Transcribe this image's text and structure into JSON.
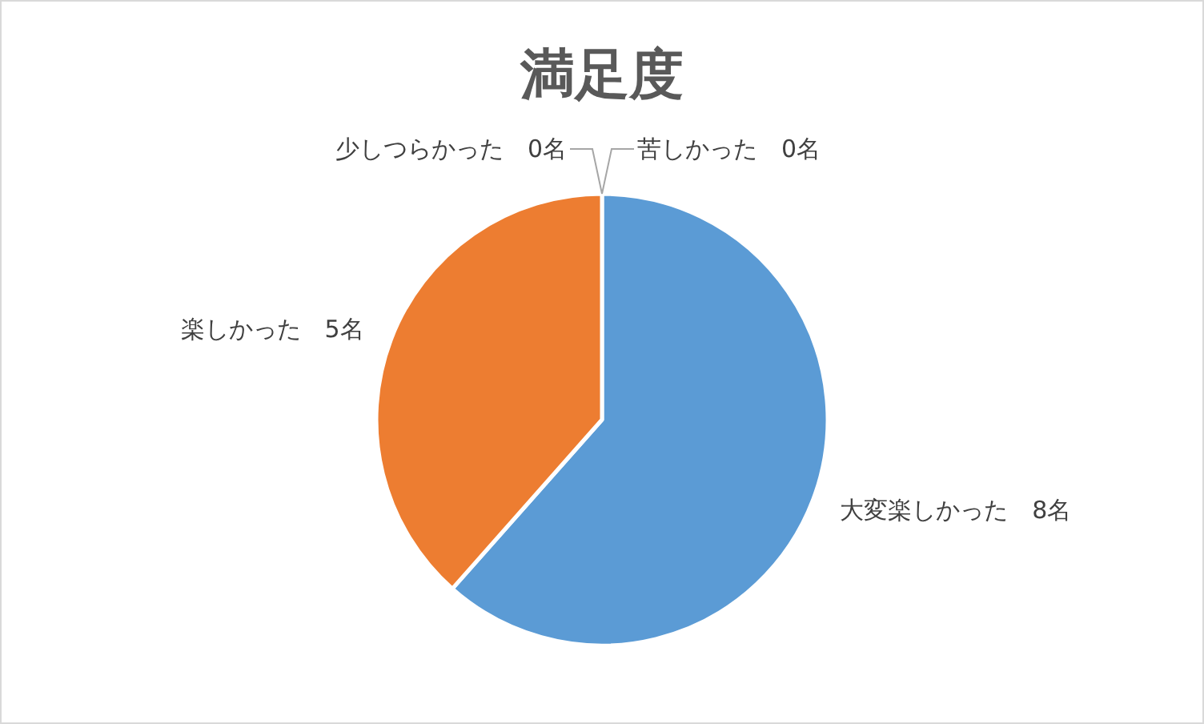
{
  "chart_data": {
    "type": "pie",
    "title": "満足度",
    "categories": [
      "大変楽しかった",
      "楽しかった",
      "少しつらかった",
      "苦しかった"
    ],
    "values": [
      8,
      5,
      0,
      0
    ],
    "colors": [
      "#5b9bd5",
      "#ed7d31",
      "#a5a5a5",
      "#ffc000"
    ],
    "value_labels": [
      "8名",
      "5名",
      "0名",
      "0名"
    ]
  }
}
